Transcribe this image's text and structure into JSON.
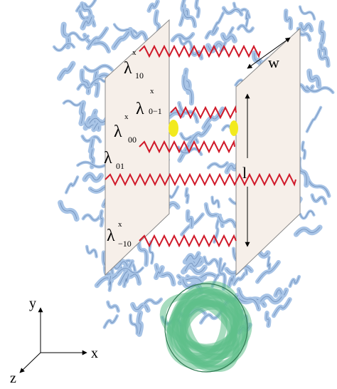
{
  "figure": {
    "colors": {
      "protein_ribbon": "#a8c4e6",
      "protein_ribbon_edge": "#6f8fba",
      "ring_domain": "#5fbf8a",
      "ring_domain_edge": "#2f7a52",
      "plate": "#f6efe9",
      "plate_edge": "#8a8a8a",
      "spring": "#d01a2a",
      "highlight": "#f2ea1e"
    },
    "springs": [
      {
        "id": "lambda-10",
        "symbol": "λ",
        "superscript": "x",
        "subscript": "10"
      },
      {
        "id": "lambda-0-1",
        "symbol": "λ",
        "superscript": "x",
        "subscript": "0−1"
      },
      {
        "id": "lambda-00",
        "symbol": "λ",
        "superscript": "x",
        "subscript": "00"
      },
      {
        "id": "lambda-01",
        "symbol": "λ",
        "superscript": "",
        "subscript": "01"
      },
      {
        "id": "lambda--10",
        "symbol": "λ",
        "superscript": "x",
        "subscript": "−10"
      }
    ],
    "dimensions": {
      "width_label": "w",
      "length_label": "l"
    },
    "axes": {
      "x_label": "x",
      "y_label": "y",
      "z_label": "z"
    }
  }
}
